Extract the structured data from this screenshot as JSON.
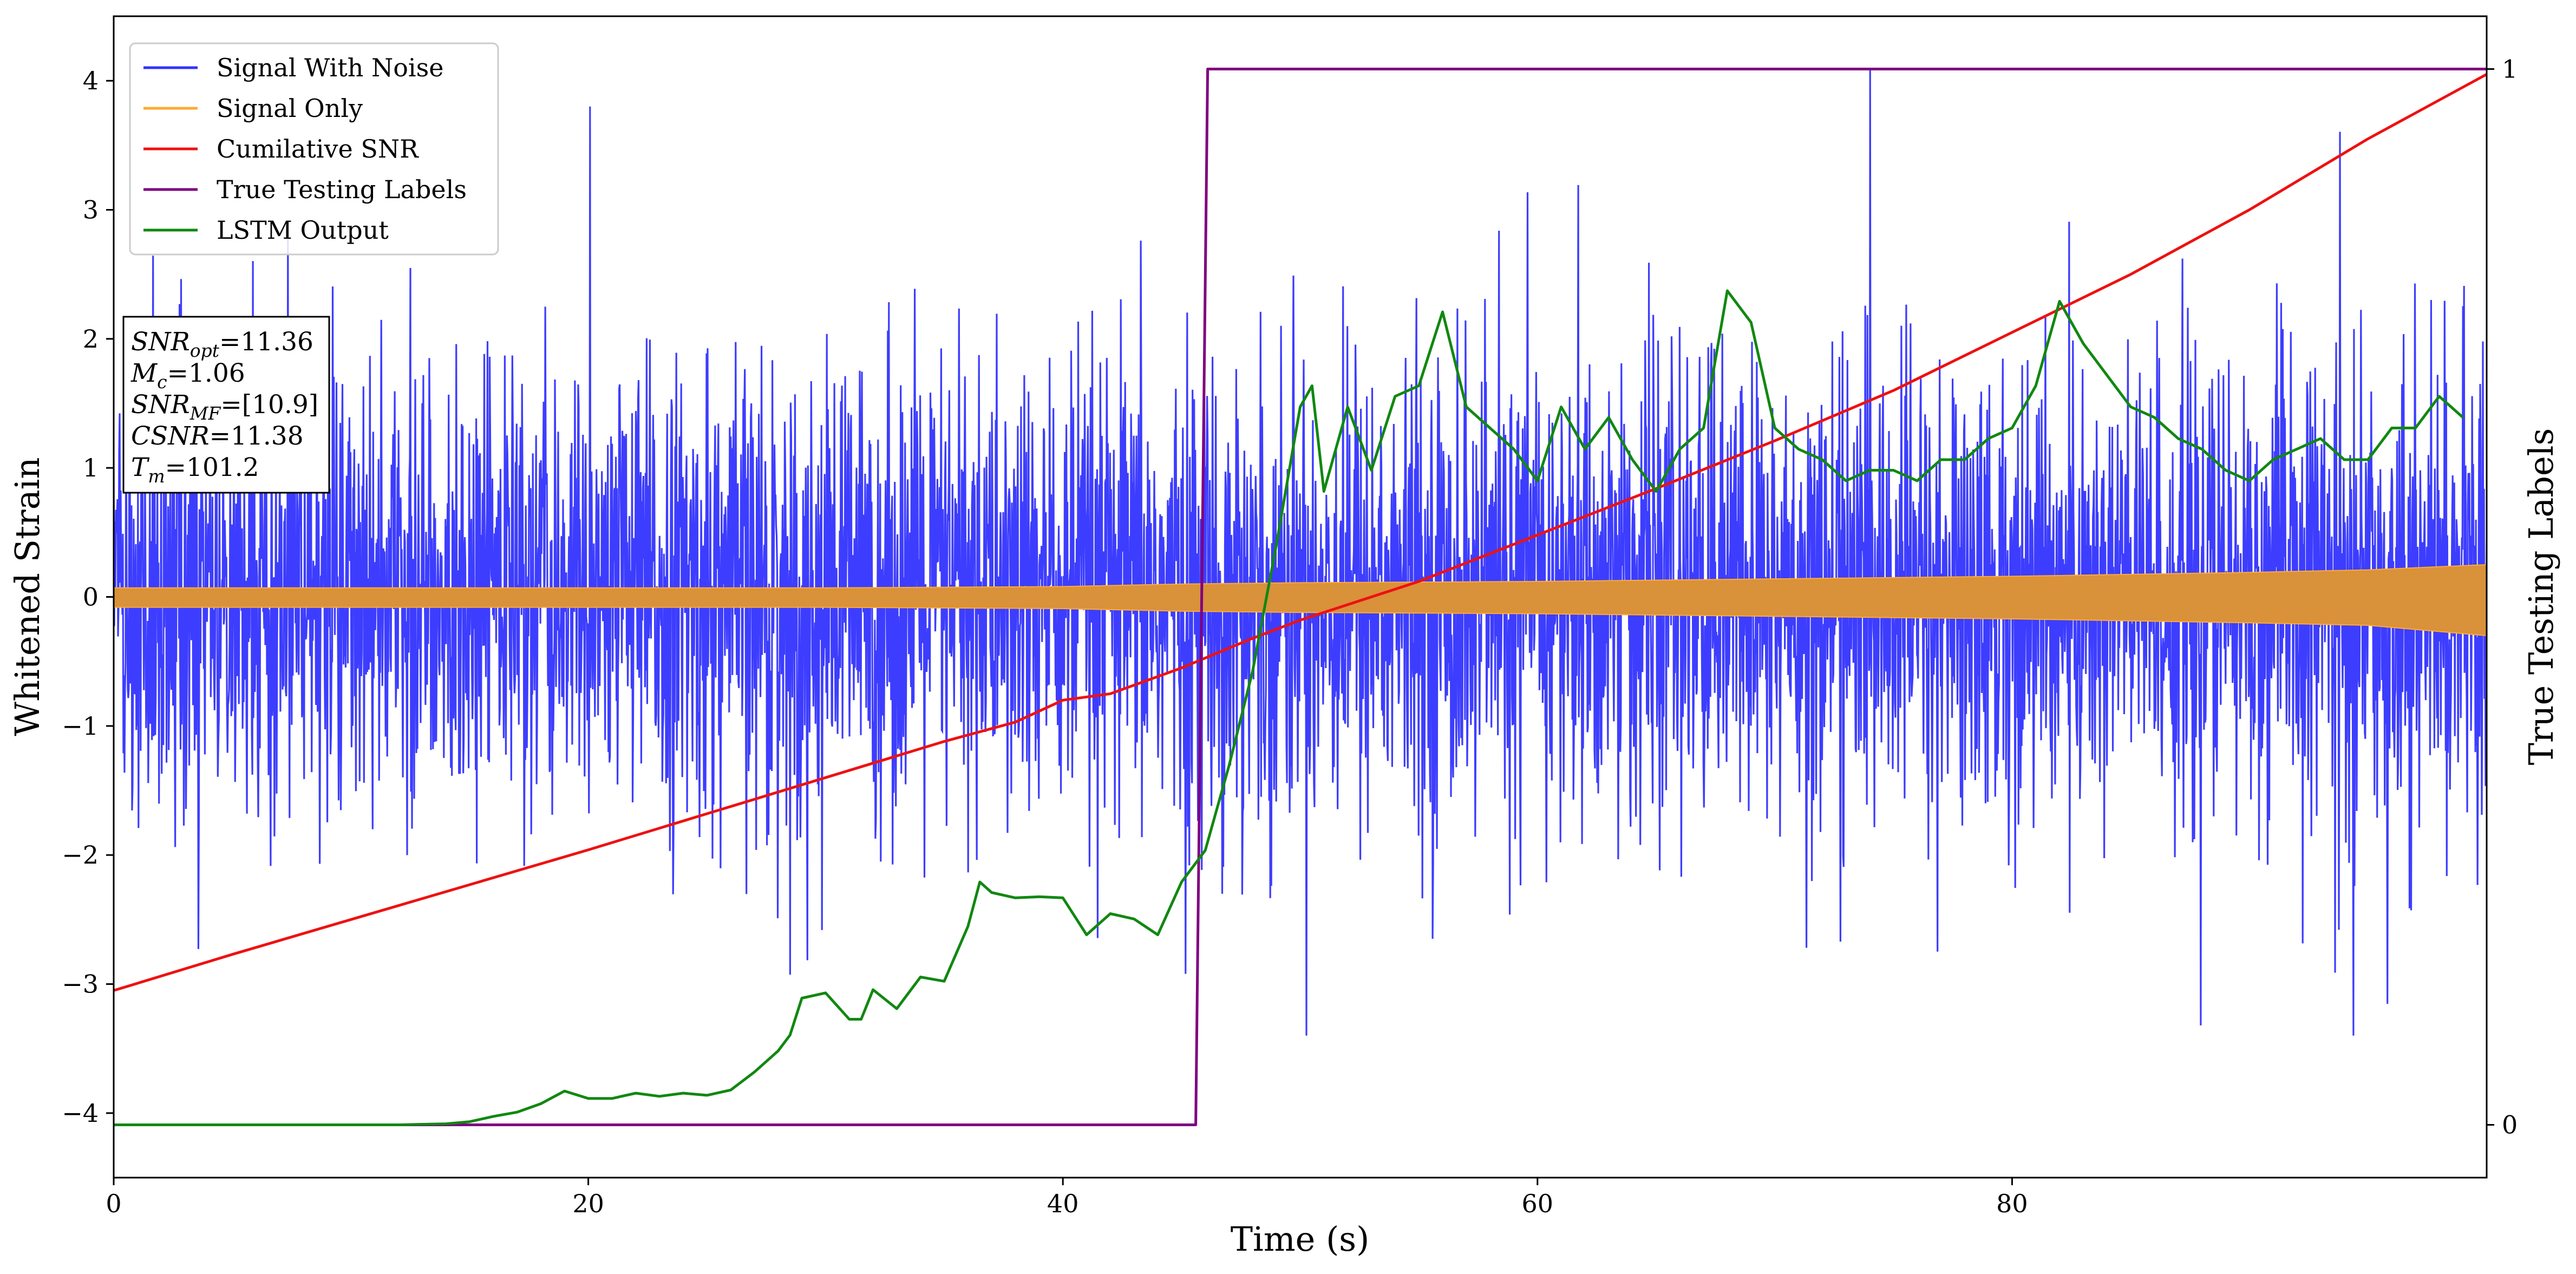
{
  "chart_data": {
    "type": "line",
    "xlabel": "Time (s)",
    "ylabel": "Whitened Strain",
    "ylabel_right": "True Testing Labels",
    "xlim": [
      0,
      100
    ],
    "ylim": [
      -4.5,
      4.5
    ],
    "ylim_right": [
      -0.05,
      1.05
    ],
    "x_ticks": [
      0,
      20,
      40,
      60,
      80
    ],
    "x_tick_labels": [
      "0",
      "20",
      "40",
      "60",
      "80"
    ],
    "y_ticks": [
      -4,
      -3,
      -2,
      -1,
      0,
      1,
      2,
      3,
      4
    ],
    "y_tick_labels": [
      "−4",
      "−3",
      "−2",
      "−1",
      "0",
      "1",
      "2",
      "3",
      "4"
    ],
    "y_right_ticks": [
      0,
      1
    ],
    "y_right_tick_labels": [
      "0",
      "1"
    ],
    "grid": false,
    "legend": "top-left",
    "series": [
      {
        "name": "Signal With Noise",
        "color": "#3333ff",
        "axis": "left",
        "kind": "noise",
        "typical_amplitude": 1.6,
        "peak_amplitude": 4.1,
        "x_range": [
          0,
          100
        ]
      },
      {
        "name": "Signal Only",
        "color": "#ffaa33",
        "fill_color": "#d9913a",
        "axis": "left",
        "kind": "envelope",
        "x": [
          0,
          10,
          20,
          30,
          40,
          45,
          50,
          60,
          70,
          80,
          90,
          95,
          100
        ],
        "upper": [
          0.07,
          0.07,
          0.07,
          0.07,
          0.08,
          0.1,
          0.11,
          0.12,
          0.14,
          0.16,
          0.19,
          0.21,
          0.25
        ],
        "lower": [
          -0.08,
          -0.08,
          -0.08,
          -0.08,
          -0.09,
          -0.11,
          -0.12,
          -0.13,
          -0.15,
          -0.17,
          -0.2,
          -0.22,
          -0.3
        ]
      },
      {
        "name": "Cumilative SNR",
        "color": "#ee1111",
        "axis": "left",
        "kind": "line",
        "x": [
          0,
          5,
          10,
          15,
          20,
          25,
          30,
          35,
          38,
          40,
          42,
          45,
          48,
          50,
          55,
          60,
          65,
          70,
          75,
          80,
          85,
          90,
          95,
          100
        ],
        "y": [
          -3.05,
          -2.77,
          -2.5,
          -2.23,
          -1.96,
          -1.68,
          -1.4,
          -1.12,
          -0.97,
          -0.8,
          -0.75,
          -0.55,
          -0.32,
          -0.18,
          0.12,
          0.48,
          0.84,
          1.21,
          1.6,
          2.05,
          2.5,
          3.0,
          3.55,
          4.05
        ]
      },
      {
        "name": "True Testing Labels",
        "color": "#800080",
        "axis": "right",
        "kind": "line",
        "x": [
          0,
          45.6,
          46.1,
          100
        ],
        "y": [
          0,
          0,
          1,
          1
        ]
      },
      {
        "name": "LSTM Output",
        "color": "#118811",
        "axis": "right",
        "kind": "line",
        "x": [
          0,
          12,
          14,
          15,
          16,
          17,
          18,
          19,
          20,
          21,
          22,
          23,
          24,
          25,
          26,
          27,
          28,
          28.5,
          29,
          30,
          31,
          31.5,
          32,
          33,
          34,
          35,
          36,
          36.5,
          37,
          38,
          39,
          40,
          41,
          42,
          43,
          44,
          45,
          46,
          47,
          48,
          49,
          50,
          50.5,
          51,
          52,
          53,
          54,
          55,
          56,
          57,
          58,
          59,
          60,
          61,
          62,
          63,
          64,
          65,
          66,
          67,
          68,
          69,
          70,
          71,
          72,
          73,
          74,
          75,
          76,
          77,
          78,
          79,
          80,
          81,
          82,
          83,
          84,
          85,
          86,
          87,
          88,
          89,
          90,
          91,
          92,
          93,
          94,
          95,
          96,
          97,
          98,
          99
        ],
        "y": [
          0,
          0,
          0.001,
          0.003,
          0.008,
          0.012,
          0.02,
          0.032,
          0.025,
          0.025,
          0.03,
          0.027,
          0.03,
          0.028,
          0.033,
          0.05,
          0.07,
          0.085,
          0.12,
          0.125,
          0.1,
          0.1,
          0.128,
          0.11,
          0.14,
          0.136,
          0.188,
          0.23,
          0.22,
          0.215,
          0.216,
          0.215,
          0.18,
          0.2,
          0.195,
          0.18,
          0.23,
          0.26,
          0.34,
          0.43,
          0.55,
          0.68,
          0.7,
          0.6,
          0.68,
          0.62,
          0.69,
          0.7,
          0.77,
          0.68,
          0.66,
          0.64,
          0.61,
          0.68,
          0.64,
          0.67,
          0.63,
          0.6,
          0.64,
          0.66,
          0.79,
          0.76,
          0.66,
          0.64,
          0.63,
          0.61,
          0.62,
          0.62,
          0.61,
          0.63,
          0.63,
          0.65,
          0.66,
          0.7,
          0.78,
          0.74,
          0.71,
          0.68,
          0.67,
          0.65,
          0.64,
          0.62,
          0.61,
          0.63,
          0.64,
          0.65,
          0.63,
          0.63,
          0.66,
          0.66,
          0.69,
          0.67
        ]
      }
    ]
  },
  "annotation": {
    "lines": [
      {
        "sym": "SNR",
        "sub": "opt",
        "value": "=11.36"
      },
      {
        "sym": "M",
        "sub": "c",
        "value": "=1.06"
      },
      {
        "sym": "SNR",
        "sub": "MF",
        "value": "=[10.9]"
      },
      {
        "sym": "CSNR",
        "sub": "",
        "value": "=11.38"
      },
      {
        "sym": "T",
        "sub": "m",
        "value": "=101.2"
      }
    ]
  }
}
